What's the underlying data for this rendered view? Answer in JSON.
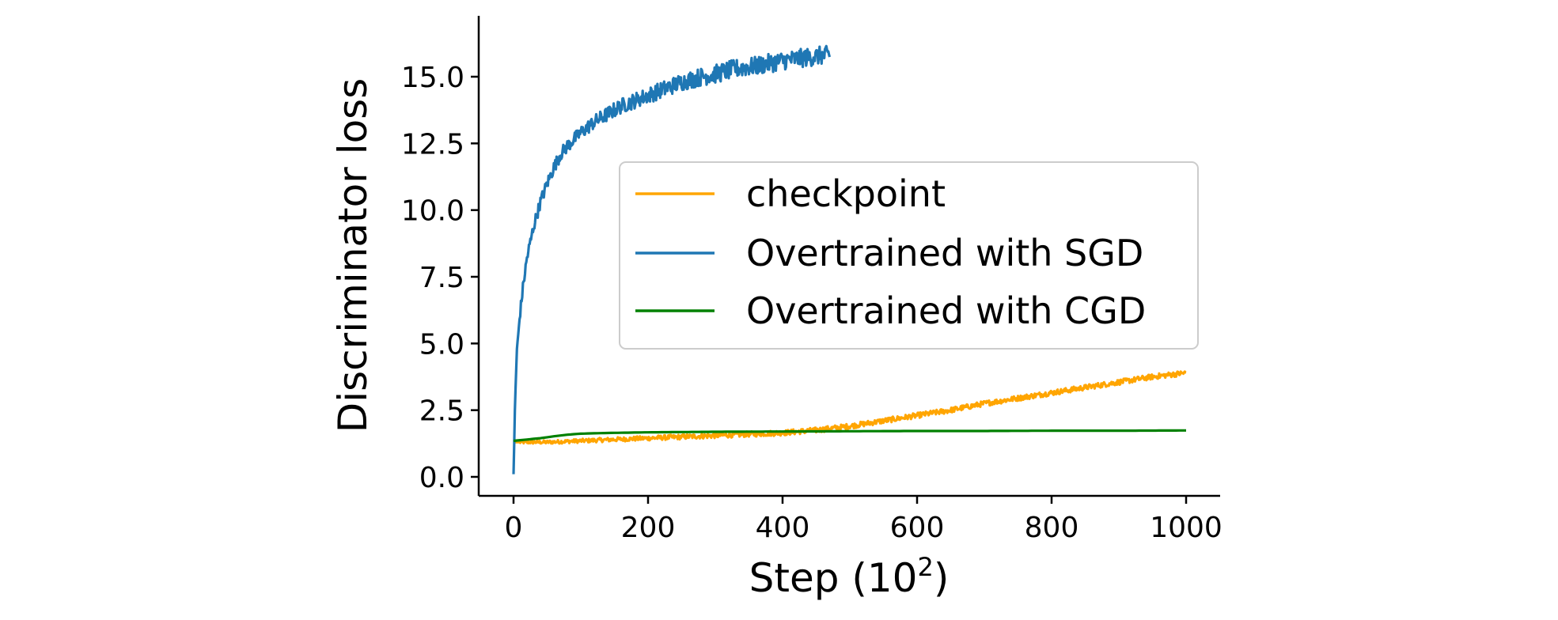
{
  "chart_data": {
    "type": "line",
    "xlabel_main": "Step (10",
    "xlabel_sup": "2",
    "xlabel_close": ")",
    "ylabel": "Discriminator loss",
    "xlim": [
      -50,
      1050
    ],
    "ylim": [
      -0.7,
      17.2
    ],
    "xticks": [
      0,
      200,
      400,
      600,
      800,
      1000
    ],
    "xtick_labels": [
      "0",
      "200",
      "400",
      "600",
      "800",
      "1000"
    ],
    "yticks": [
      0,
      2.5,
      5,
      7.5,
      10,
      12.5,
      15
    ],
    "ytick_labels": [
      "0.0",
      "2.5",
      "5.0",
      "7.5",
      "10.0",
      "12.5",
      "15.0"
    ],
    "grid": false,
    "legend_placement": "center-right",
    "series": [
      {
        "name": "checkpoint",
        "color": "#FFA500",
        "noise": 0.1,
        "x": [
          0,
          50,
          100,
          150,
          200,
          250,
          300,
          350,
          400,
          450,
          500,
          550,
          600,
          650,
          700,
          750,
          800,
          850,
          900,
          950,
          1000
        ],
        "y": [
          1.3,
          1.3,
          1.35,
          1.4,
          1.45,
          1.5,
          1.55,
          1.6,
          1.65,
          1.75,
          1.9,
          2.1,
          2.3,
          2.5,
          2.75,
          2.95,
          3.15,
          3.35,
          3.55,
          3.75,
          3.9
        ]
      },
      {
        "name": "Overtrained with SGD",
        "color": "#1f77b4",
        "noise": 0.35,
        "x": [
          0,
          2,
          5,
          10,
          15,
          20,
          30,
          40,
          50,
          60,
          70,
          80,
          100,
          120,
          140,
          160,
          180,
          200,
          220,
          250,
          280,
          300,
          330,
          360,
          400,
          430,
          460,
          470
        ],
        "y": [
          0.1,
          2.5,
          4.8,
          6.2,
          7.3,
          8.2,
          9.4,
          10.3,
          11.0,
          11.6,
          12.1,
          12.4,
          12.9,
          13.3,
          13.6,
          13.9,
          14.1,
          14.3,
          14.5,
          14.8,
          15.0,
          15.1,
          15.3,
          15.4,
          15.6,
          15.7,
          15.8,
          15.8
        ]
      },
      {
        "name": "Overtrained with CGD",
        "color": "#008000",
        "noise": 0,
        "x": [
          0,
          20,
          40,
          60,
          80,
          100,
          150,
          200,
          300,
          400,
          500,
          600,
          700,
          800,
          900,
          1000
        ],
        "y": [
          1.35,
          1.4,
          1.45,
          1.52,
          1.58,
          1.62,
          1.65,
          1.67,
          1.69,
          1.7,
          1.71,
          1.72,
          1.72,
          1.73,
          1.73,
          1.74
        ]
      }
    ]
  }
}
